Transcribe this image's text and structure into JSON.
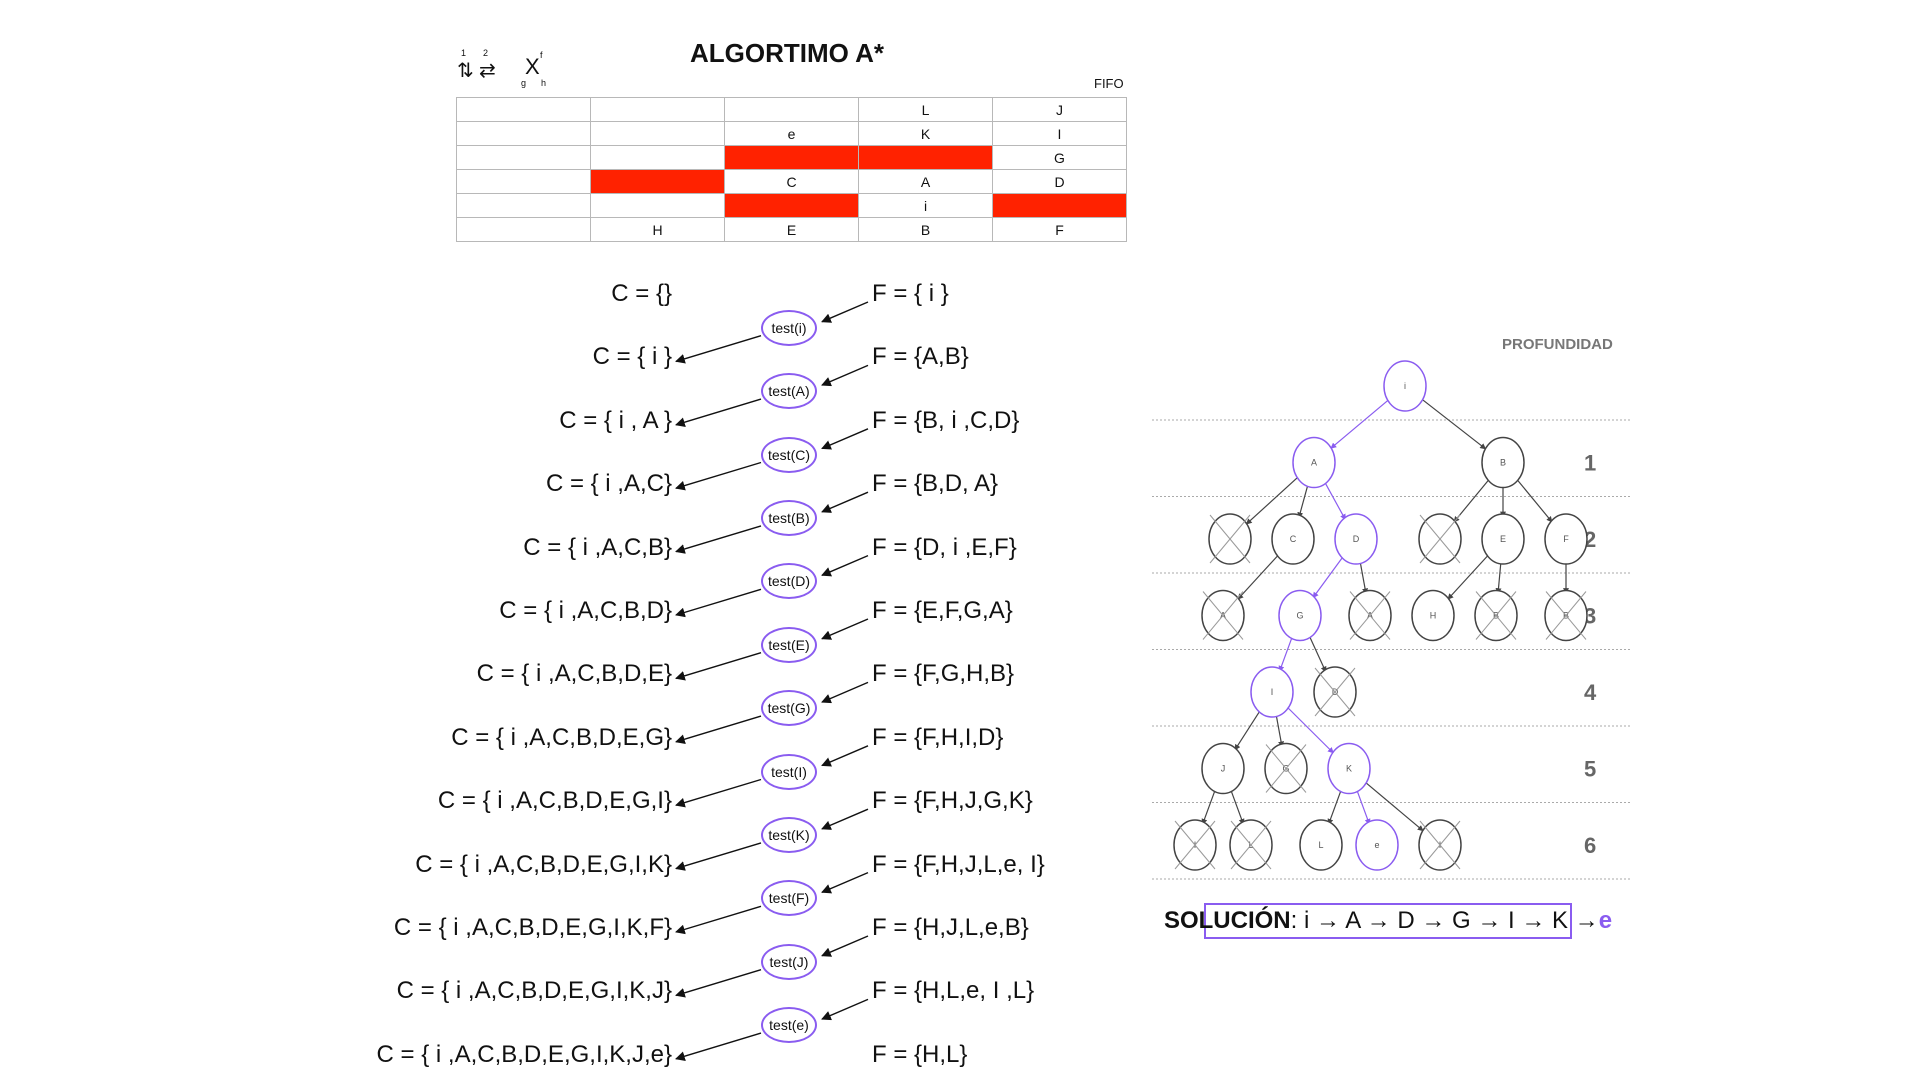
{
  "header": {
    "title": "ALGORTIMO A*",
    "fifo_label": "FIFO",
    "legend": {
      "n1": "1",
      "n2": "2",
      "xf": "f",
      "xg": "g",
      "xh": "h",
      "x": "X"
    }
  },
  "grid": [
    [
      "",
      "",
      "",
      "L",
      "J"
    ],
    [
      "",
      "",
      "e",
      "K",
      "I"
    ],
    [
      "",
      "",
      "#",
      "#",
      "G"
    ],
    [
      "",
      "#",
      "C",
      "A",
      "D"
    ],
    [
      "",
      "",
      "#",
      "i",
      "#"
    ],
    [
      "",
      "H",
      "E",
      "B",
      "F"
    ]
  ],
  "colors": {
    "obstacle": "#ff2200",
    "accent": "#8a5cf0",
    "goal": "#8a5cf0"
  },
  "trace": {
    "closed": [
      "C = {}",
      "C = { i }",
      "C = { i , A }",
      "C = { i ,A,C}",
      "C = { i ,A,C,B}",
      "C = { i ,A,C,B,D}",
      "C = { i ,A,C,B,D,E}",
      "C = { i ,A,C,B,D,E,G}",
      "C = { i ,A,C,B,D,E,G,I}",
      "C = { i ,A,C,B,D,E,G,I,K}",
      "C = { i ,A,C,B,D,E,G,I,K,F}",
      "C = { i ,A,C,B,D,E,G,I,K,J}",
      "C = { i ,A,C,B,D,E,G,I,K,J,e}"
    ],
    "open": [
      "F = { i }",
      "F = {A,B}",
      "F = {B, i ,C,D}",
      "F = {B,D, A}",
      "F = {D, i ,E,F}",
      "F = {E,F,G,A}",
      "F = {F,G,H,B}",
      "F = {F,H,I,D}",
      "F = {F,H,J,G,K}",
      "F = {F,H,J,L,e, I}",
      "F = {H,J,L,e,B}",
      "F = {H,L,e, I ,L}",
      "F = {H,L}"
    ],
    "tests": [
      "test(i)",
      "test(A)",
      "test(C)",
      "test(B)",
      "test(D)",
      "test(E)",
      "test(G)",
      "test(I)",
      "test(K)",
      "test(F)",
      "test(J)",
      "test(e)"
    ]
  },
  "tree": {
    "heading": "PROFUNDIDAD",
    "depths": [
      "1",
      "2",
      "3",
      "4",
      "5",
      "6"
    ],
    "nodes": [
      {
        "id": "i",
        "label": "i",
        "level": 0,
        "slot": 3.5,
        "path": true,
        "crossed": false
      },
      {
        "id": "A",
        "label": "A",
        "level": 1,
        "slot": 2.2,
        "path": true,
        "crossed": false
      },
      {
        "id": "B",
        "label": "B",
        "level": 1,
        "slot": 4.9,
        "path": false,
        "crossed": false
      },
      {
        "id": "x1",
        "label": "",
        "level": 2,
        "slot": 1.0,
        "path": false,
        "crossed": true
      },
      {
        "id": "C",
        "label": "C",
        "level": 2,
        "slot": 1.9,
        "path": false,
        "crossed": false
      },
      {
        "id": "D",
        "label": "D",
        "level": 2,
        "slot": 2.8,
        "path": true,
        "crossed": false
      },
      {
        "id": "x2",
        "label": "",
        "level": 2,
        "slot": 4.0,
        "path": false,
        "crossed": true
      },
      {
        "id": "E",
        "label": "E",
        "level": 2,
        "slot": 4.9,
        "path": false,
        "crossed": false
      },
      {
        "id": "F",
        "label": "F",
        "level": 2,
        "slot": 5.8,
        "path": false,
        "crossed": false
      },
      {
        "id": "x3",
        "label": "A",
        "level": 3,
        "slot": 0.9,
        "path": false,
        "crossed": true
      },
      {
        "id": "G",
        "label": "G",
        "level": 3,
        "slot": 2.0,
        "path": true,
        "crossed": false
      },
      {
        "id": "x4",
        "label": "A",
        "level": 3,
        "slot": 3.0,
        "path": false,
        "crossed": true
      },
      {
        "id": "H",
        "label": "H",
        "level": 3,
        "slot": 3.9,
        "path": false,
        "crossed": false
      },
      {
        "id": "x5",
        "label": "B",
        "level": 3,
        "slot": 4.8,
        "path": false,
        "crossed": true
      },
      {
        "id": "x6",
        "label": "B",
        "level": 3,
        "slot": 5.8,
        "path": false,
        "crossed": true
      },
      {
        "id": "I",
        "label": "I",
        "level": 4,
        "slot": 1.6,
        "path": true,
        "crossed": false
      },
      {
        "id": "x7",
        "label": "D",
        "level": 4,
        "slot": 2.5,
        "path": false,
        "crossed": true
      },
      {
        "id": "J",
        "label": "J",
        "level": 5,
        "slot": 0.9,
        "path": false,
        "crossed": false
      },
      {
        "id": "x8",
        "label": "G",
        "level": 5,
        "slot": 1.8,
        "path": false,
        "crossed": true
      },
      {
        "id": "K",
        "label": "K",
        "level": 5,
        "slot": 2.7,
        "path": true,
        "crossed": false
      },
      {
        "id": "x9",
        "label": "I",
        "level": 6,
        "slot": 0.5,
        "path": false,
        "crossed": true
      },
      {
        "id": "x10",
        "label": "L",
        "level": 6,
        "slot": 1.3,
        "path": false,
        "crossed": true
      },
      {
        "id": "L",
        "label": "L",
        "level": 6,
        "slot": 2.3,
        "path": false,
        "crossed": false
      },
      {
        "id": "e",
        "label": "e",
        "level": 6,
        "slot": 3.1,
        "path": true,
        "crossed": false
      },
      {
        "id": "x11",
        "label": "I",
        "level": 6,
        "slot": 4.0,
        "path": false,
        "crossed": true
      }
    ],
    "edges": [
      [
        "i",
        "A",
        true
      ],
      [
        "i",
        "B",
        false
      ],
      [
        "A",
        "x1",
        false
      ],
      [
        "A",
        "C",
        false
      ],
      [
        "A",
        "D",
        true
      ],
      [
        "B",
        "x2",
        false
      ],
      [
        "B",
        "E",
        false
      ],
      [
        "B",
        "F",
        false
      ],
      [
        "C",
        "x3",
        false
      ],
      [
        "D",
        "G",
        true
      ],
      [
        "D",
        "x4",
        false
      ],
      [
        "E",
        "H",
        false
      ],
      [
        "E",
        "x5",
        false
      ],
      [
        "F",
        "x6",
        false
      ],
      [
        "G",
        "I",
        true
      ],
      [
        "G",
        "x7",
        false
      ],
      [
        "I",
        "J",
        false
      ],
      [
        "I",
        "x8",
        false
      ],
      [
        "I",
        "K",
        true
      ],
      [
        "J",
        "x9",
        false
      ],
      [
        "J",
        "x10",
        false
      ],
      [
        "K",
        "L",
        false
      ],
      [
        "K",
        "e",
        true
      ],
      [
        "K",
        "x11",
        false
      ]
    ]
  },
  "solution": {
    "label": "SOLUCIÓN",
    "path": ": i → A → D → G → I → K → ",
    "goal": "e"
  }
}
